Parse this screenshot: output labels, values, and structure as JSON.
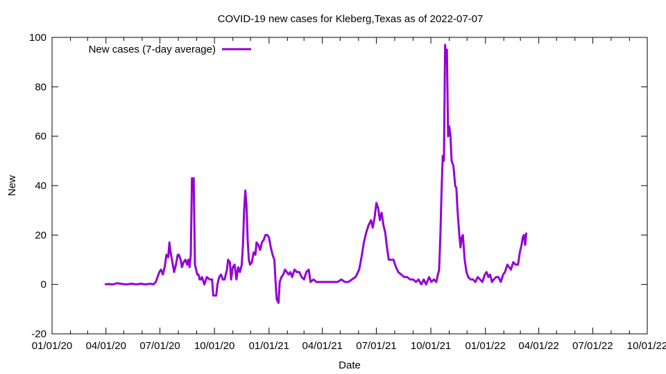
{
  "chart_data": {
    "type": "line",
    "title": "COVID-19 new cases for Kleberg,Texas as of 2022-07-07",
    "xlabel": "Date",
    "ylabel": "New",
    "xlim": [
      "2020-01-01",
      "2022-10-01"
    ],
    "ylim": [
      -20,
      100
    ],
    "x_ticks": [
      "01/01/20",
      "04/01/20",
      "07/01/20",
      "10/01/20",
      "01/01/21",
      "04/01/21",
      "07/01/21",
      "10/01/21",
      "01/01/22",
      "04/01/22",
      "07/01/22",
      "10/01/22"
    ],
    "y_ticks": [
      -20,
      0,
      20,
      40,
      60,
      80,
      100
    ],
    "grid": false,
    "legend_position": "top-left",
    "line_color": "#9400d3",
    "series": [
      {
        "name": "New cases (7-day average)",
        "points": [
          [
            "2020-03-30",
            0
          ],
          [
            "2020-04-05",
            0.2
          ],
          [
            "2020-04-12",
            0
          ],
          [
            "2020-04-20",
            0.5
          ],
          [
            "2020-04-28",
            0.2
          ],
          [
            "2020-05-06",
            0
          ],
          [
            "2020-05-14",
            0.3
          ],
          [
            "2020-05-22",
            0
          ],
          [
            "2020-05-30",
            0.3
          ],
          [
            "2020-06-07",
            0
          ],
          [
            "2020-06-14",
            0.3
          ],
          [
            "2020-06-20",
            0
          ],
          [
            "2020-06-24",
            1
          ],
          [
            "2020-06-27",
            3
          ],
          [
            "2020-06-30",
            5
          ],
          [
            "2020-07-03",
            6
          ],
          [
            "2020-07-06",
            4
          ],
          [
            "2020-07-09",
            7
          ],
          [
            "2020-07-12",
            12
          ],
          [
            "2020-07-15",
            11
          ],
          [
            "2020-07-17",
            17
          ],
          [
            "2020-07-19",
            13
          ],
          [
            "2020-07-22",
            9
          ],
          [
            "2020-07-25",
            5
          ],
          [
            "2020-07-28",
            8
          ],
          [
            "2020-07-31",
            12
          ],
          [
            "2020-08-02",
            12
          ],
          [
            "2020-08-05",
            10
          ],
          [
            "2020-08-07",
            7
          ],
          [
            "2020-08-10",
            9
          ],
          [
            "2020-08-13",
            10
          ],
          [
            "2020-08-16",
            8
          ],
          [
            "2020-08-18",
            10
          ],
          [
            "2020-08-20",
            7
          ],
          [
            "2020-08-22",
            12
          ],
          [
            "2020-08-24",
            43
          ],
          [
            "2020-08-26",
            39
          ],
          [
            "2020-08-27",
            43
          ],
          [
            "2020-08-29",
            8
          ],
          [
            "2020-08-31",
            6
          ],
          [
            "2020-09-02",
            4
          ],
          [
            "2020-09-04",
            4
          ],
          [
            "2020-09-06",
            2
          ],
          [
            "2020-09-08",
            2
          ],
          [
            "2020-09-10",
            3
          ],
          [
            "2020-09-14",
            0
          ],
          [
            "2020-09-18",
            3
          ],
          [
            "2020-09-23",
            2
          ],
          [
            "2020-09-27",
            2
          ],
          [
            "2020-09-29",
            -4.5
          ],
          [
            "2020-10-04",
            -4.5
          ],
          [
            "2020-10-06",
            0
          ],
          [
            "2020-10-09",
            3
          ],
          [
            "2020-10-12",
            4
          ],
          [
            "2020-10-15",
            2
          ],
          [
            "2020-10-18",
            2
          ],
          [
            "2020-10-22",
            6
          ],
          [
            "2020-10-24",
            10
          ],
          [
            "2020-10-27",
            9
          ],
          [
            "2020-10-29",
            2
          ],
          [
            "2020-11-01",
            7
          ],
          [
            "2020-11-04",
            8
          ],
          [
            "2020-11-07",
            2
          ],
          [
            "2020-11-10",
            7
          ],
          [
            "2020-11-13",
            5
          ],
          [
            "2020-11-16",
            8
          ],
          [
            "2020-11-18",
            16
          ],
          [
            "2020-11-20",
            30
          ],
          [
            "2020-11-22",
            38
          ],
          [
            "2020-11-24",
            32
          ],
          [
            "2020-11-26",
            18
          ],
          [
            "2020-11-28",
            10
          ],
          [
            "2020-11-30",
            8
          ],
          [
            "2020-12-03",
            9
          ],
          [
            "2020-12-06",
            13
          ],
          [
            "2020-12-09",
            12
          ],
          [
            "2020-12-11",
            17
          ],
          [
            "2020-12-14",
            16
          ],
          [
            "2020-12-17",
            14
          ],
          [
            "2020-12-20",
            17
          ],
          [
            "2020-12-23",
            18
          ],
          [
            "2020-12-26",
            20
          ],
          [
            "2020-12-29",
            20
          ],
          [
            "2021-01-01",
            19
          ],
          [
            "2021-01-04",
            15
          ],
          [
            "2021-01-07",
            12
          ],
          [
            "2021-01-10",
            10
          ],
          [
            "2021-01-12",
            1
          ],
          [
            "2021-01-14",
            -6
          ],
          [
            "2021-01-17",
            -7.5
          ],
          [
            "2021-01-19",
            1
          ],
          [
            "2021-01-22",
            3
          ],
          [
            "2021-01-25",
            4
          ],
          [
            "2021-01-28",
            6
          ],
          [
            "2021-01-31",
            5
          ],
          [
            "2021-02-03",
            4
          ],
          [
            "2021-02-06",
            5
          ],
          [
            "2021-02-09",
            3
          ],
          [
            "2021-02-13",
            6
          ],
          [
            "2021-02-17",
            5
          ],
          [
            "2021-02-21",
            5
          ],
          [
            "2021-02-25",
            3
          ],
          [
            "2021-03-01",
            2
          ],
          [
            "2021-03-05",
            5
          ],
          [
            "2021-03-09",
            6
          ],
          [
            "2021-03-12",
            1
          ],
          [
            "2021-03-17",
            2
          ],
          [
            "2021-03-22",
            1
          ],
          [
            "2021-03-28",
            1
          ],
          [
            "2021-04-03",
            1
          ],
          [
            "2021-04-09",
            1
          ],
          [
            "2021-04-15",
            1
          ],
          [
            "2021-04-21",
            1
          ],
          [
            "2021-04-27",
            1
          ],
          [
            "2021-05-03",
            2
          ],
          [
            "2021-05-09",
            1
          ],
          [
            "2021-05-15",
            1
          ],
          [
            "2021-05-21",
            2
          ],
          [
            "2021-05-27",
            3
          ],
          [
            "2021-06-02",
            6
          ],
          [
            "2021-06-06",
            11
          ],
          [
            "2021-06-10",
            17
          ],
          [
            "2021-06-14",
            21
          ],
          [
            "2021-06-18",
            24
          ],
          [
            "2021-06-22",
            26
          ],
          [
            "2021-06-25",
            23
          ],
          [
            "2021-06-28",
            27
          ],
          [
            "2021-07-01",
            33
          ],
          [
            "2021-07-04",
            31
          ],
          [
            "2021-07-07",
            26
          ],
          [
            "2021-07-10",
            29
          ],
          [
            "2021-07-13",
            24
          ],
          [
            "2021-07-16",
            21
          ],
          [
            "2021-07-19",
            15
          ],
          [
            "2021-07-22",
            10
          ],
          [
            "2021-07-26",
            10
          ],
          [
            "2021-07-30",
            10
          ],
          [
            "2021-08-03",
            7
          ],
          [
            "2021-08-07",
            5
          ],
          [
            "2021-08-12",
            4
          ],
          [
            "2021-08-17",
            3
          ],
          [
            "2021-08-22",
            3
          ],
          [
            "2021-08-27",
            2
          ],
          [
            "2021-09-01",
            2
          ],
          [
            "2021-09-06",
            1
          ],
          [
            "2021-09-10",
            2
          ],
          [
            "2021-09-15",
            0
          ],
          [
            "2021-09-19",
            2
          ],
          [
            "2021-09-23",
            0
          ],
          [
            "2021-09-28",
            3
          ],
          [
            "2021-10-02",
            1
          ],
          [
            "2021-10-06",
            2
          ],
          [
            "2021-10-10",
            1
          ],
          [
            "2021-10-13",
            4
          ],
          [
            "2021-10-15",
            6
          ],
          [
            "2021-10-17",
            20
          ],
          [
            "2021-10-19",
            38
          ],
          [
            "2021-10-21",
            52
          ],
          [
            "2021-10-23",
            50
          ],
          [
            "2021-10-25",
            97
          ],
          [
            "2021-10-27",
            90
          ],
          [
            "2021-10-28",
            95
          ],
          [
            "2021-10-30",
            60
          ],
          [
            "2021-11-01",
            64
          ],
          [
            "2021-11-03",
            60
          ],
          [
            "2021-11-05",
            50
          ],
          [
            "2021-11-08",
            48
          ],
          [
            "2021-11-11",
            40
          ],
          [
            "2021-11-13",
            39
          ],
          [
            "2021-11-15",
            30
          ],
          [
            "2021-11-18",
            20
          ],
          [
            "2021-11-20",
            15
          ],
          [
            "2021-11-22",
            19
          ],
          [
            "2021-11-24",
            20
          ],
          [
            "2021-11-27",
            10
          ],
          [
            "2021-11-30",
            5
          ],
          [
            "2021-12-03",
            3
          ],
          [
            "2021-12-07",
            2
          ],
          [
            "2021-12-11",
            2
          ],
          [
            "2021-12-15",
            1
          ],
          [
            "2021-12-19",
            3
          ],
          [
            "2021-12-23",
            2
          ],
          [
            "2021-12-27",
            1
          ],
          [
            "2021-12-31",
            4
          ],
          [
            "2022-01-03",
            5
          ],
          [
            "2022-01-06",
            3
          ],
          [
            "2022-01-09",
            4
          ],
          [
            "2022-01-12",
            1
          ],
          [
            "2022-01-15",
            2
          ],
          [
            "2022-01-19",
            3
          ],
          [
            "2022-01-23",
            3
          ],
          [
            "2022-01-27",
            1
          ],
          [
            "2022-01-31",
            4
          ],
          [
            "2022-02-03",
            5
          ],
          [
            "2022-02-07",
            8
          ],
          [
            "2022-02-10",
            7
          ],
          [
            "2022-02-13",
            6
          ],
          [
            "2022-02-17",
            9
          ],
          [
            "2022-02-21",
            8
          ],
          [
            "2022-02-25",
            8
          ],
          [
            "2022-02-28",
            13
          ],
          [
            "2022-03-03",
            16
          ],
          [
            "2022-03-05",
            19
          ],
          [
            "2022-03-07",
            20
          ],
          [
            "2022-03-09",
            16
          ],
          [
            "2022-03-11",
            21
          ]
        ]
      }
    ]
  }
}
